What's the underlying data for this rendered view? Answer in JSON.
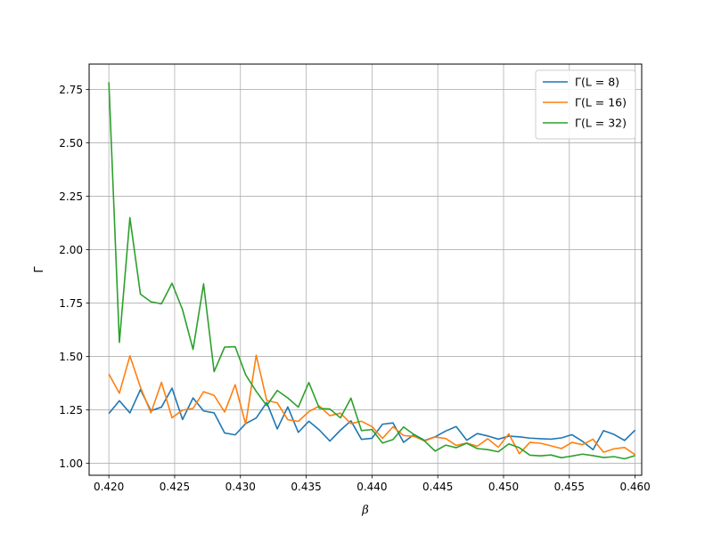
{
  "chart_data": {
    "type": "line",
    "title": "",
    "xlabel": "β",
    "ylabel": "Γ",
    "xlim": [
      0.4185,
      0.4605
    ],
    "ylim": [
      0.944,
      2.869
    ],
    "x_ticks": [
      "0.420",
      "0.425",
      "0.430",
      "0.435",
      "0.440",
      "0.445",
      "0.450",
      "0.455",
      "0.460"
    ],
    "y_ticks": [
      "1.00",
      "1.25",
      "1.50",
      "1.75",
      "2.00",
      "2.25",
      "2.50",
      "2.75"
    ],
    "grid": true,
    "legend_position": "upper-right",
    "x": [
      0.42,
      0.4208,
      0.4216,
      0.4224,
      0.4232,
      0.424,
      0.4248,
      0.4256,
      0.4264,
      0.4272,
      0.428,
      0.4288,
      0.4296,
      0.4304,
      0.4312,
      0.432,
      0.4328,
      0.4336,
      0.4344,
      0.4352,
      0.436,
      0.4368,
      0.4376,
      0.4384,
      0.4392,
      0.44,
      0.4408,
      0.4416,
      0.4424,
      0.4432,
      0.444,
      0.4448,
      0.4456,
      0.4464,
      0.4472,
      0.448,
      0.4488,
      0.4496,
      0.4504,
      0.4512,
      0.452,
      0.4528,
      0.4536,
      0.4544,
      0.4552,
      0.456,
      0.4568,
      0.4576,
      0.4584,
      0.4592,
      0.46
    ],
    "series": [
      {
        "name": "Γ(L = 8)",
        "color": "#1f77b4",
        "values": [
          1.233,
          1.293,
          1.236,
          1.345,
          1.246,
          1.263,
          1.352,
          1.205,
          1.306,
          1.245,
          1.236,
          1.142,
          1.133,
          1.186,
          1.212,
          1.285,
          1.161,
          1.264,
          1.145,
          1.197,
          1.156,
          1.104,
          1.155,
          1.199,
          1.112,
          1.117,
          1.183,
          1.189,
          1.098,
          1.135,
          1.107,
          1.124,
          1.151,
          1.172,
          1.108,
          1.139,
          1.128,
          1.113,
          1.127,
          1.124,
          1.118,
          1.115,
          1.113,
          1.119,
          1.134,
          1.103,
          1.064,
          1.153,
          1.135,
          1.107,
          1.155
        ]
      },
      {
        "name": "Γ(L = 16)",
        "color": "#ff7f0e",
        "values": [
          1.418,
          1.328,
          1.503,
          1.356,
          1.236,
          1.379,
          1.213,
          1.249,
          1.257,
          1.335,
          1.318,
          1.24,
          1.368,
          1.183,
          1.506,
          1.294,
          1.283,
          1.204,
          1.196,
          1.242,
          1.268,
          1.223,
          1.235,
          1.186,
          1.197,
          1.172,
          1.117,
          1.171,
          1.13,
          1.126,
          1.105,
          1.123,
          1.116,
          1.084,
          1.095,
          1.08,
          1.115,
          1.075,
          1.138,
          1.045,
          1.098,
          1.094,
          1.082,
          1.069,
          1.098,
          1.087,
          1.113,
          1.052,
          1.068,
          1.074,
          1.04
        ]
      },
      {
        "name": "Γ(L = 32)",
        "color": "#2ca02c",
        "values": [
          2.784,
          1.566,
          2.15,
          1.792,
          1.756,
          1.747,
          1.843,
          1.719,
          1.533,
          1.84,
          1.429,
          1.544,
          1.546,
          1.414,
          1.337,
          1.27,
          1.341,
          1.306,
          1.263,
          1.378,
          1.257,
          1.254,
          1.213,
          1.305,
          1.153,
          1.158,
          1.095,
          1.111,
          1.17,
          1.134,
          1.104,
          1.057,
          1.085,
          1.073,
          1.094,
          1.069,
          1.064,
          1.054,
          1.091,
          1.073,
          1.038,
          1.035,
          1.039,
          1.026,
          1.034,
          1.043,
          1.036,
          1.027,
          1.031,
          1.021,
          1.036
        ]
      }
    ]
  }
}
